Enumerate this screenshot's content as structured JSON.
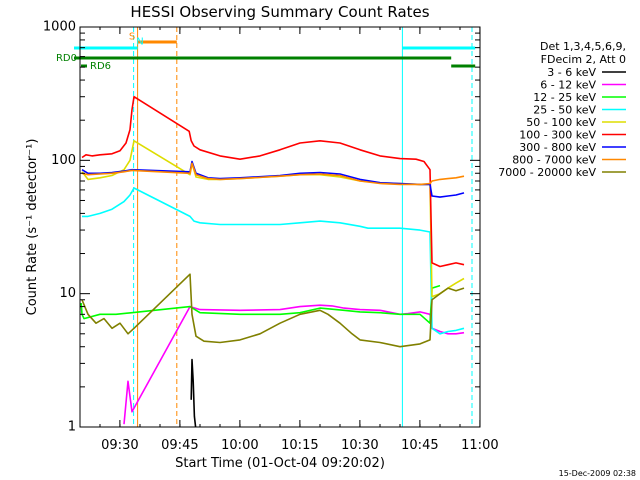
{
  "chart_data": {
    "type": "line",
    "title": "HESSI Observing Summary Count Rates",
    "xlabel": "Start Time (01-Oct-04 09:20:02)",
    "ylabel": "Count Rate (s⁻¹ detector⁻¹)",
    "x_unit": "minutes after 09:20:02",
    "x_range": [
      0,
      100
    ],
    "ylim": [
      1,
      1000
    ],
    "y_scale": "log",
    "grid": false,
    "legend_position": "right",
    "x_ticks": [
      {
        "value": 9.97,
        "label": "09:30"
      },
      {
        "value": 24.97,
        "label": "09:45"
      },
      {
        "value": 39.97,
        "label": "10:00"
      },
      {
        "value": 54.97,
        "label": "10:15"
      },
      {
        "value": 69.97,
        "label": "10:30"
      },
      {
        "value": 84.97,
        "label": "10:45"
      },
      {
        "value": 99.97,
        "label": "11:00"
      }
    ],
    "y_ticks": [
      {
        "value": 1,
        "label": "1"
      },
      {
        "value": 10,
        "label": "10"
      },
      {
        "value": 100,
        "label": "100"
      },
      {
        "value": 1000,
        "label": "1000"
      }
    ],
    "legend_header": [
      "Det 1,3,4,5,6,9,",
      "FDecim 2, Att 0"
    ],
    "series": [
      {
        "name": "3 - 6 keV",
        "color": "#000000",
        "x": [
          27.8,
          28.0,
          28.3,
          28.6,
          28.9
        ],
        "values": [
          1.6,
          3.2,
          2.2,
          1.2,
          1.0
        ]
      },
      {
        "name": "6 - 12 keV",
        "color": "#ff00ff",
        "x": [
          11,
          12,
          13,
          27.5,
          30,
          40,
          50,
          55,
          60,
          63,
          66,
          70,
          75,
          78,
          80,
          82,
          85,
          87.5,
          88,
          90,
          92,
          94,
          96
        ],
        "values": [
          1.05,
          2.2,
          1.3,
          8.0,
          7.6,
          7.5,
          7.6,
          8.0,
          8.2,
          8.1,
          7.8,
          7.6,
          7.5,
          7.2,
          7.0,
          7.1,
          7.3,
          7.0,
          5.5,
          5.2,
          5.0,
          5.0,
          5.1
        ]
      },
      {
        "name": "12 - 25 keV",
        "color": "#00ff00",
        "x": [
          0.3,
          0.5,
          1,
          5,
          9,
          13,
          27.5,
          30,
          40,
          50,
          55,
          60,
          66,
          70,
          75,
          80,
          85,
          87.5,
          88,
          90
        ],
        "values": [
          8.5,
          7.0,
          6.5,
          7.0,
          7.0,
          7.2,
          8.0,
          7.2,
          7.0,
          7.0,
          7.2,
          7.8,
          7.5,
          7.3,
          7.2,
          7.0,
          7.0,
          6.0,
          11.0,
          11.5
        ]
      },
      {
        "name": "25 - 50 keV",
        "color": "#00ffff",
        "x": [
          0.5,
          2,
          5,
          8,
          11,
          12.5,
          13.5,
          27.5,
          28.5,
          30,
          35,
          40,
          50,
          55,
          60,
          65,
          70,
          72,
          75,
          80,
          85,
          87.5,
          88,
          90,
          92,
          94,
          96
        ],
        "values": [
          38,
          38,
          40,
          43,
          49,
          55,
          62,
          38,
          35,
          34,
          33,
          33,
          33,
          34,
          35,
          34,
          32,
          31,
          31,
          31,
          30,
          29,
          5.5,
          5.0,
          5.2,
          5.3,
          5.5
        ]
      },
      {
        "name": "50 - 100 keV",
        "color": "#dddd00",
        "x": [
          0.5,
          2,
          5,
          8,
          11,
          12.5,
          13.5,
          27.5,
          28,
          29,
          32,
          35,
          40,
          50,
          55,
          60,
          65,
          70,
          75,
          80,
          85,
          87.5,
          88,
          90,
          92,
          94,
          96
        ],
        "values": [
          82,
          72,
          74,
          77,
          85,
          100,
          140,
          78,
          95,
          75,
          72,
          72,
          73,
          76,
          78,
          78,
          75,
          70,
          68,
          67,
          66,
          66,
          9.5,
          10,
          11,
          12,
          13
        ]
      },
      {
        "name": "100 - 300 keV",
        "color": "#ff0000",
        "x": [
          0.5,
          1.5,
          3,
          5,
          8,
          10,
          11.5,
          12.5,
          13,
          13.5,
          27.3,
          27.8,
          28.5,
          30,
          35,
          40,
          45,
          50,
          55,
          60,
          65,
          70,
          75,
          80,
          84,
          86,
          87.5,
          88,
          90,
          92,
          94,
          96
        ],
        "values": [
          105,
          110,
          108,
          110,
          112,
          118,
          135,
          170,
          240,
          300,
          165,
          140,
          128,
          120,
          108,
          102,
          108,
          120,
          135,
          140,
          135,
          120,
          108,
          103,
          102,
          98,
          85,
          17,
          16,
          16.5,
          17,
          16.5
        ]
      },
      {
        "name": "300 - 800 keV",
        "color": "#0000ff",
        "x": [
          0.5,
          2,
          5,
          8,
          11,
          13,
          27.5,
          28,
          29,
          32,
          35,
          40,
          50,
          55,
          60,
          65,
          70,
          75,
          80,
          85,
          87.5,
          88,
          90,
          92,
          94,
          96
        ],
        "values": [
          85,
          80,
          80,
          81,
          83,
          85,
          82,
          98,
          80,
          74,
          73,
          74,
          77,
          80,
          81,
          79,
          72,
          68,
          67,
          66,
          66,
          54,
          53,
          54,
          55,
          57
        ]
      },
      {
        "name": "800 - 7000 keV",
        "color": "#ff8800",
        "x": [
          0.5,
          2,
          5,
          8,
          11,
          13,
          27.5,
          28,
          29,
          32,
          35,
          40,
          50,
          55,
          60,
          65,
          70,
          75,
          80,
          85,
          87.5,
          88,
          90,
          92,
          94,
          96
        ],
        "values": [
          80,
          78,
          79,
          80,
          82,
          84,
          80,
          95,
          78,
          73,
          72,
          73,
          76,
          78,
          79,
          77,
          70,
          67,
          66,
          66,
          67,
          70,
          72,
          73,
          74,
          76
        ]
      },
      {
        "name": "7000 - 20000 keV",
        "color": "#808000",
        "x": [
          0.5,
          2,
          4,
          6,
          8,
          10,
          12,
          13.5,
          27.5,
          28,
          29,
          31,
          35,
          40,
          45,
          50,
          55,
          60,
          62,
          65,
          68,
          70,
          75,
          80,
          85,
          87.5,
          88,
          90,
          92,
          94,
          96
        ],
        "values": [
          9.0,
          7.0,
          6.0,
          6.5,
          5.5,
          6.0,
          5.0,
          5.5,
          14,
          7.0,
          4.8,
          4.4,
          4.3,
          4.5,
          5.0,
          6.0,
          7.0,
          7.5,
          7.0,
          6.0,
          5.0,
          4.5,
          4.3,
          4.0,
          4.2,
          4.5,
          9.0,
          10,
          11,
          10.5,
          11
        ]
      }
    ],
    "vertical_markers": [
      {
        "x": 0.0,
        "color": "#00ffff",
        "style": "solid"
      },
      {
        "x": 13.4,
        "color": "#00ffff",
        "style": "dashed"
      },
      {
        "x": 14.4,
        "color": "#ff8800",
        "style": "solid"
      },
      {
        "x": 24.2,
        "color": "#ff8800",
        "style": "dashed"
      },
      {
        "x": 80.6,
        "color": "#00ffff",
        "style": "solid"
      },
      {
        "x": 98.0,
        "color": "#00ffff",
        "style": "dashed"
      }
    ],
    "state_bars": [
      {
        "label": "S",
        "color": "#ff8800",
        "x_start": 14.4,
        "x_end": 24.2,
        "label_x": 13.0,
        "label_y": 850
      },
      {
        "label": "N",
        "color": "#00ffff",
        "x_start": -1.5,
        "x_end": 14.4,
        "label_x": 15.0,
        "label_y": 780
      },
      {
        "label": "",
        "color": "#00ffff",
        "x_start": 80.6,
        "x_end": 98.8
      },
      {
        "label": "RD0",
        "color": "#008000",
        "x_start": -1.5,
        "x_end": 92.8
      },
      {
        "label": "RD6",
        "color": "#008000",
        "x_start": 92.8,
        "x_end": 98.8
      }
    ],
    "footer": "15-Dec-2009 02:38"
  }
}
